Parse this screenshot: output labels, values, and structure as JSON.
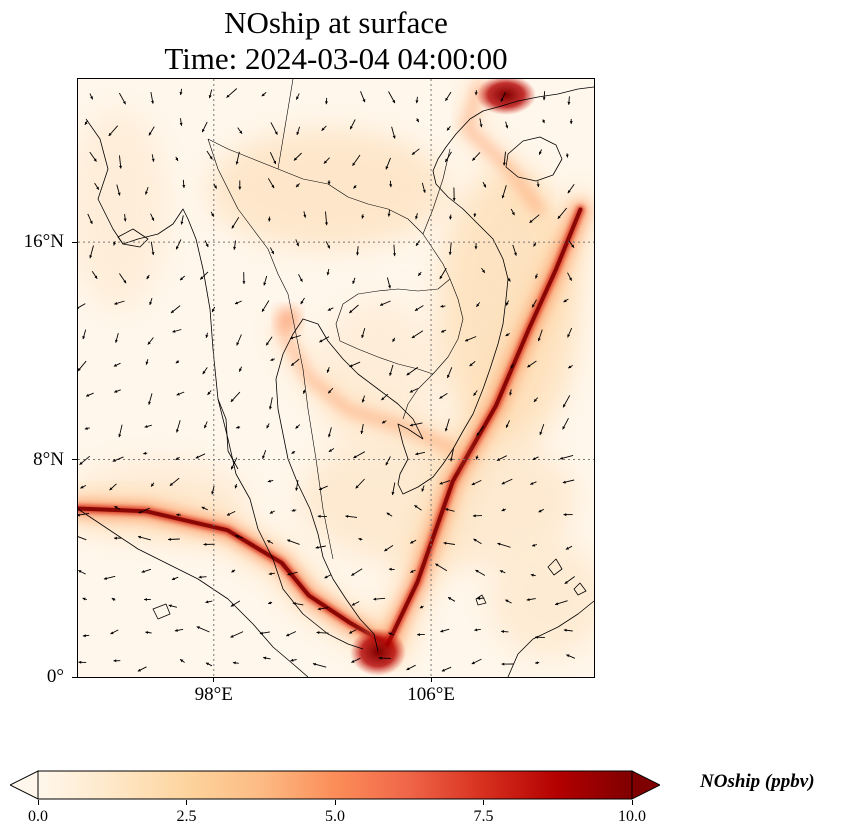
{
  "title_line1": "NOship at surface",
  "title_line2": "Time: 2024-03-04 04:00:00",
  "map": {
    "lon_range": [
      93,
      112
    ],
    "lat_range": [
      0,
      22
    ],
    "gridlines": "dotted",
    "lat_ticks": [
      {
        "value": 0,
        "label": "0°"
      },
      {
        "value": 8,
        "label": "8°N"
      },
      {
        "value": 16,
        "label": "16°N"
      }
    ],
    "lon_ticks": [
      {
        "value": 98,
        "label": "98°E"
      },
      {
        "value": 106,
        "label": "106°E"
      }
    ],
    "colormap": "OrRd",
    "shipping_lanes_lonlat": [
      [
        [
          93.0,
          6.2
        ],
        [
          95.5,
          6.1
        ],
        [
          98.5,
          5.4
        ],
        [
          100.5,
          4.2
        ],
        [
          101.5,
          3.0
        ],
        [
          103.0,
          2.0
        ],
        [
          104.4,
          1.2
        ]
      ],
      [
        [
          104.4,
          1.2
        ],
        [
          105.5,
          3.5
        ],
        [
          106.8,
          7.2
        ],
        [
          108.4,
          10.0
        ],
        [
          109.6,
          12.8
        ],
        [
          110.6,
          15.0
        ],
        [
          111.5,
          17.2
        ]
      ],
      [
        [
          110.0,
          17.2
        ],
        [
          108.8,
          18.8
        ],
        [
          107.3,
          20.2
        ],
        [
          107.8,
          21.8
        ]
      ],
      [
        [
          100.5,
          12.8
        ],
        [
          101.5,
          11.0
        ],
        [
          103.0,
          9.8
        ],
        [
          105.0,
          9.2
        ],
        [
          106.8,
          8.4
        ]
      ]
    ]
  },
  "colorbar": {
    "label": "NOship (ppbv)",
    "min": 0.0,
    "max": 10.0,
    "extend": "both",
    "ticks": [
      "0.0",
      "2.5",
      "5.0",
      "7.5",
      "10.0"
    ],
    "colors": [
      "#fff7ec",
      "#fee8c8",
      "#fdd49e",
      "#fdbb84",
      "#fc8d59",
      "#ef6548",
      "#d7301f",
      "#b30000",
      "#7f0000"
    ]
  }
}
